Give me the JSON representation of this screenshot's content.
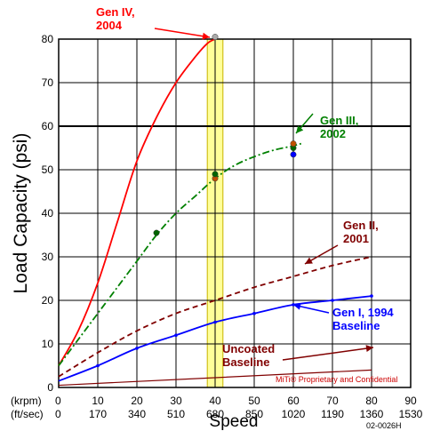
{
  "chart_data": {
    "type": "line",
    "title": "",
    "xlabel": "Speed",
    "ylabel": "Load Capacity (psi)",
    "x_units": [
      "(krpm)",
      "(ft/sec)"
    ],
    "xlim": [
      0,
      90
    ],
    "ylim": [
      0,
      80
    ],
    "x_ticks_krpm": [
      "0",
      "10",
      "20",
      "30",
      "40",
      "50",
      "60",
      "70",
      "80",
      "90"
    ],
    "x_ticks_ftsec": [
      "0",
      "170",
      "340",
      "510",
      "680",
      "850",
      "1020",
      "1190",
      "1360",
      "1530"
    ],
    "y_ticks": [
      "0",
      "10",
      "20",
      "30",
      "40",
      "50",
      "60",
      "70",
      "80"
    ],
    "grid": true,
    "highlight_band": {
      "x_range": [
        38,
        42
      ],
      "color": "#ffff99"
    },
    "series": [
      {
        "name": "Gen IV, 2004",
        "color": "#ff0000",
        "style": "solid",
        "x": [
          0,
          5,
          10,
          15,
          20,
          25,
          30,
          35,
          38,
          40
        ],
        "y": [
          5,
          13,
          24,
          38,
          52,
          62,
          70,
          76,
          79,
          80
        ]
      },
      {
        "name": "Gen III, 2002",
        "color": "#008000",
        "style": "dash-dot",
        "x": [
          0,
          5,
          10,
          15,
          20,
          25,
          30,
          35,
          40,
          45,
          50,
          55,
          60,
          62
        ],
        "y": [
          5,
          11,
          17,
          23,
          29,
          35,
          40,
          44,
          48,
          51,
          53,
          54.5,
          55.5,
          56
        ]
      },
      {
        "name": "Gen II, 2001",
        "color": "#800000",
        "style": "dashed",
        "x": [
          0,
          10,
          20,
          30,
          40,
          50,
          60,
          70,
          80
        ],
        "y": [
          2.5,
          8,
          13,
          17,
          20,
          23,
          25.5,
          28,
          30
        ]
      },
      {
        "name": "Gen I, 1994 Baseline",
        "color": "#0000ff",
        "style": "solid-markers",
        "x": [
          0,
          10,
          20,
          30,
          40,
          50,
          60,
          70,
          80
        ],
        "y": [
          1.5,
          5,
          9,
          12,
          15,
          17,
          19,
          20,
          21
        ]
      },
      {
        "name": "Uncoated Baseline",
        "color": "#800000",
        "style": "solid-thin",
        "x": [
          0,
          80
        ],
        "y": [
          0.5,
          4
        ]
      }
    ],
    "data_points": [
      {
        "x": 25,
        "y": 35.5,
        "color": "#006400"
      },
      {
        "x": 40,
        "y": 48,
        "color": "#c05000"
      },
      {
        "x": 40,
        "y": 49,
        "color": "#006400"
      },
      {
        "x": 60,
        "y": 53.5,
        "color": "#0000ff"
      },
      {
        "x": 60,
        "y": 55,
        "color": "#006400"
      },
      {
        "x": 60,
        "y": 56,
        "color": "#c05000"
      },
      {
        "x": 40,
        "y": 80.5,
        "color": "#aaaaaa"
      }
    ],
    "annotations": [
      {
        "lines": [
          "Gen IV,",
          "2004"
        ],
        "color": "#ff0000"
      },
      {
        "lines": [
          "Gen III,",
          "2002"
        ],
        "color": "#008000"
      },
      {
        "lines": [
          "Gen II,",
          "2001"
        ],
        "color": "#800000"
      },
      {
        "lines": [
          "Gen I, 1994",
          "Baseline"
        ],
        "color": "#0000ff"
      },
      {
        "lines": [
          "Uncoated",
          "Baseline"
        ],
        "color": "#800000"
      }
    ],
    "footer_note": "MiTi® Proprietary and Confidential",
    "figure_id": "02-0026H"
  }
}
